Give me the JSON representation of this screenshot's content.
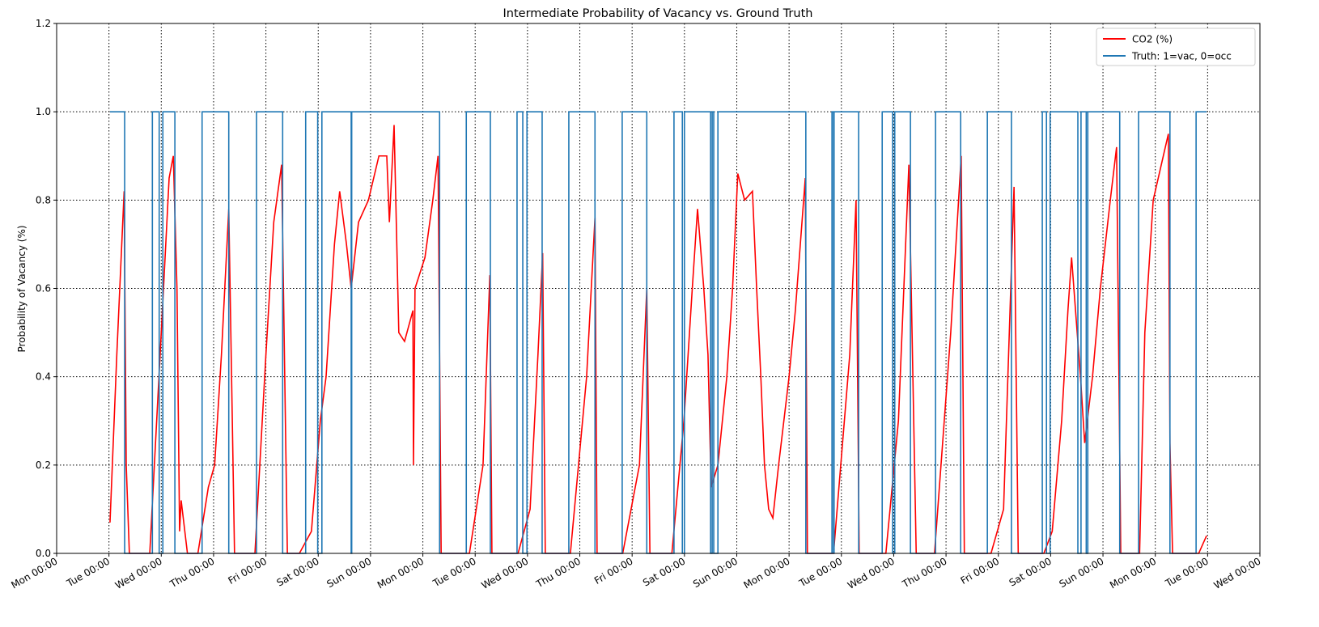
{
  "chart_data": {
    "type": "line",
    "title": "Intermediate Probability of Vacancy vs. Ground Truth",
    "ylabel": "Probability of Vacancy (%)",
    "xlim": [
      0,
      23
    ],
    "ylim": [
      0,
      1.2
    ],
    "xticks": [
      {
        "value": 0,
        "label": "Mon 00:00"
      },
      {
        "value": 1,
        "label": "Tue 00:00"
      },
      {
        "value": 2,
        "label": "Wed 00:00"
      },
      {
        "value": 3,
        "label": "Thu 00:00"
      },
      {
        "value": 4,
        "label": "Fri 00:00"
      },
      {
        "value": 5,
        "label": "Sat 00:00"
      },
      {
        "value": 6,
        "label": "Sun 00:00"
      },
      {
        "value": 7,
        "label": "Mon 00:00"
      },
      {
        "value": 8,
        "label": "Tue 00:00"
      },
      {
        "value": 9,
        "label": "Wed 00:00"
      },
      {
        "value": 10,
        "label": "Thu 00:00"
      },
      {
        "value": 11,
        "label": "Fri 00:00"
      },
      {
        "value": 12,
        "label": "Sat 00:00"
      },
      {
        "value": 13,
        "label": "Sun 00:00"
      },
      {
        "value": 14,
        "label": "Mon 00:00"
      },
      {
        "value": 15,
        "label": "Tue 00:00"
      },
      {
        "value": 16,
        "label": "Wed 00:00"
      },
      {
        "value": 17,
        "label": "Thu 00:00"
      },
      {
        "value": 18,
        "label": "Fri 00:00"
      },
      {
        "value": 19,
        "label": "Sat 00:00"
      },
      {
        "value": 20,
        "label": "Sun 00:00"
      },
      {
        "value": 21,
        "label": "Mon 00:00"
      },
      {
        "value": 22,
        "label": "Tue 00:00"
      },
      {
        "value": 23,
        "label": "Wed 00:00"
      }
    ],
    "yticks": [
      {
        "value": 0,
        "label": "0.0"
      },
      0.2,
      0.4,
      0.6,
      0.8,
      {
        "value": 1,
        "label": "1.0"
      },
      1.2
    ],
    "grid": true,
    "legend": "upper right",
    "series": [
      {
        "name": "CO2 (%)",
        "color": "#ff0000",
        "x": [
          1.02,
          1.15,
          1.29,
          1.33,
          1.39,
          1.78,
          2.0,
          2.15,
          2.23,
          2.3,
          2.35,
          2.38,
          2.5,
          2.7,
          2.9,
          3.02,
          3.15,
          3.29,
          3.4,
          3.79,
          4.0,
          4.15,
          4.3,
          4.41,
          4.64,
          4.87,
          5.04,
          5.15,
          5.31,
          5.41,
          5.54,
          5.63,
          5.77,
          5.96,
          6.16,
          6.31,
          6.36,
          6.45,
          6.54,
          6.65,
          6.81,
          6.82,
          6.85,
          7.04,
          7.19,
          7.29,
          7.35,
          7.89,
          8.15,
          8.28,
          8.32,
          8.82,
          9.05,
          9.2,
          9.29,
          9.34,
          9.82,
          10.13,
          10.29,
          10.33,
          10.82,
          11.14,
          11.28,
          11.34,
          11.76,
          11.99,
          12.15,
          12.25,
          12.37,
          12.45,
          12.51,
          12.64,
          12.81,
          12.92,
          13.02,
          13.15,
          13.3,
          13.38,
          13.46,
          13.53,
          13.61,
          13.69,
          13.8,
          14.0,
          14.12,
          14.31,
          14.35,
          14.85,
          15.16,
          15.28,
          15.34,
          15.85,
          16.09,
          16.29,
          16.43,
          16.78,
          17.09,
          17.29,
          17.35,
          17.86,
          18.1,
          18.3,
          18.38,
          18.87,
          19.03,
          19.21,
          19.33,
          19.4,
          19.57,
          19.65,
          19.8,
          19.95,
          20.14,
          20.26,
          20.34,
          20.7,
          20.8,
          20.96,
          21.25,
          21.28,
          21.33,
          21.83,
          21.98
        ],
        "values": [
          0.07,
          0.45,
          0.82,
          0.2,
          0,
          0,
          0.5,
          0.85,
          0.9,
          0.6,
          0.05,
          0.12,
          0,
          0,
          0.15,
          0.2,
          0.45,
          0.78,
          0,
          0,
          0.45,
          0.75,
          0.88,
          0,
          0,
          0.05,
          0.3,
          0.4,
          0.7,
          0.82,
          0.7,
          0.6,
          0.75,
          0.8,
          0.9,
          0.9,
          0.75,
          0.97,
          0.5,
          0.48,
          0.55,
          0.2,
          0.6,
          0.67,
          0.8,
          0.9,
          0,
          0,
          0.2,
          0.63,
          0,
          0,
          0.1,
          0.45,
          0.68,
          0,
          0,
          0.4,
          0.76,
          0,
          0,
          0.2,
          0.6,
          0,
          0,
          0.3,
          0.6,
          0.78,
          0.6,
          0.45,
          0.15,
          0.2,
          0.4,
          0.6,
          0.86,
          0.8,
          0.82,
          0.6,
          0.4,
          0.2,
          0.1,
          0.08,
          0.2,
          0.4,
          0.55,
          0.85,
          0,
          0,
          0.45,
          0.8,
          0,
          0,
          0.3,
          0.88,
          0,
          0,
          0.5,
          0.9,
          0,
          0,
          0.1,
          0.83,
          0,
          0,
          0.05,
          0.3,
          0.55,
          0.67,
          0.4,
          0.25,
          0.4,
          0.6,
          0.8,
          0.92,
          0,
          0,
          0.5,
          0.8,
          0.95,
          0.25,
          0,
          0,
          0.04
        ]
      },
      {
        "name": "Truth: 1=vac, 0=occ",
        "color": "#1f77b4",
        "x": [
          1.02,
          1.3,
          1.3,
          1.83,
          1.83,
          1.96,
          1.96,
          2.03,
          2.03,
          2.26,
          2.26,
          2.78,
          2.78,
          3.29,
          3.29,
          3.82,
          3.82,
          4.32,
          4.32,
          4.76,
          4.76,
          4.99,
          4.99,
          5.07,
          5.07,
          5.63,
          5.63,
          5.64,
          5.64,
          7.32,
          7.32,
          7.83,
          7.83,
          8.29,
          8.29,
          8.8,
          8.8,
          8.91,
          8.91,
          8.99,
          8.99,
          9.28,
          9.28,
          9.79,
          9.79,
          10.29,
          10.29,
          10.81,
          10.81,
          11.28,
          11.28,
          11.8,
          11.8,
          11.96,
          11.96,
          12.0,
          12.0,
          12.5,
          12.5,
          12.53,
          12.53,
          12.56,
          12.56,
          12.64,
          12.64,
          14.32,
          14.32,
          14.82,
          14.82,
          14.85,
          14.85,
          14.86,
          14.86,
          15.33,
          15.33,
          15.78,
          15.78,
          15.98,
          15.98,
          16.02,
          16.02,
          16.32,
          16.32,
          16.8,
          16.8,
          17.28,
          17.28,
          17.79,
          17.79,
          18.25,
          18.25,
          18.84,
          18.84,
          18.92,
          18.92,
          18.99,
          18.99,
          19.52,
          19.52,
          19.58,
          19.58,
          19.68,
          19.68,
          19.71,
          19.71,
          20.32,
          20.32,
          20.68,
          20.68,
          21.28,
          21.28,
          21.78,
          21.78,
          21.98
        ],
        "values": [
          1,
          1,
          0,
          0,
          1,
          1,
          0,
          0,
          1,
          1,
          0,
          0,
          1,
          1,
          0,
          0,
          1,
          1,
          0,
          0,
          1,
          1,
          0,
          0,
          1,
          1,
          0,
          0,
          1,
          1,
          0,
          0,
          1,
          1,
          0,
          0,
          1,
          1,
          0,
          0,
          1,
          1,
          0,
          0,
          1,
          1,
          0,
          0,
          1,
          1,
          0,
          0,
          1,
          1,
          0,
          0,
          1,
          1,
          0,
          0,
          1,
          1,
          0,
          0,
          1,
          1,
          0,
          0,
          1,
          1,
          0,
          0,
          1,
          1,
          0,
          0,
          1,
          1,
          0,
          0,
          1,
          1,
          0,
          0,
          1,
          1,
          0,
          0,
          1,
          1,
          0,
          0,
          1,
          1,
          0,
          0,
          1,
          1,
          0,
          0,
          1,
          1,
          0,
          0,
          1,
          1,
          0,
          0,
          1,
          1,
          0,
          0,
          1,
          1
        ]
      }
    ]
  }
}
